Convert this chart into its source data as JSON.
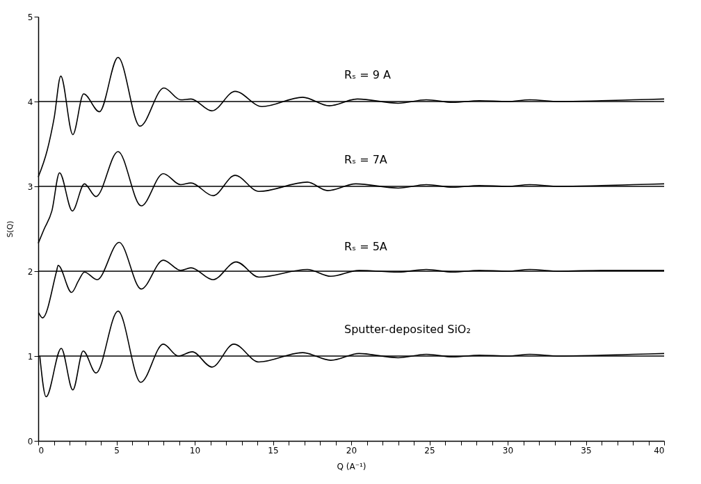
{
  "chart_data": {
    "type": "line",
    "xlabel": "Q    (A⁻¹)",
    "ylabel": "S(Q)",
    "xlim": [
      0,
      40
    ],
    "ylim": [
      0,
      5
    ],
    "xticks": [
      0,
      {
        "value": 1,
        "label": null
      },
      {
        "value": 2,
        "label": null
      },
      {
        "value": 3,
        "label": null
      },
      {
        "value": 4,
        "label": null
      },
      5,
      {
        "value": 6,
        "label": null
      },
      {
        "value": 7,
        "label": null
      },
      {
        "value": 8,
        "label": null
      },
      {
        "value": 9,
        "label": null
      },
      10,
      {
        "value": 11,
        "label": null
      },
      {
        "value": 12,
        "label": null
      },
      {
        "value": 13,
        "label": null
      },
      {
        "value": 14,
        "label": null
      },
      15,
      {
        "value": 16,
        "label": null
      },
      {
        "value": 17,
        "label": null
      },
      {
        "value": 18,
        "label": null
      },
      {
        "value": 19,
        "label": null
      },
      20,
      {
        "value": 21,
        "label": null
      },
      {
        "value": 22,
        "label": null
      },
      {
        "value": 23,
        "label": null
      },
      {
        "value": 24,
        "label": null
      },
      25,
      {
        "value": 26,
        "label": null
      },
      {
        "value": 27,
        "label": null
      },
      {
        "value": 28,
        "label": null
      },
      {
        "value": 29,
        "label": null
      },
      30,
      {
        "value": 31,
        "label": null
      },
      {
        "value": 32,
        "label": null
      },
      {
        "value": 33,
        "label": null
      },
      {
        "value": 34,
        "label": null
      },
      35,
      {
        "value": 36,
        "label": null
      },
      {
        "value": 37,
        "label": null
      },
      {
        "value": 38,
        "label": null
      },
      {
        "value": 39,
        "label": null
      },
      40
    ],
    "yticks": [
      0,
      1,
      2,
      3,
      4,
      5
    ],
    "grid": false,
    "legend": false,
    "marker": "none",
    "line_style": "solid",
    "ref_lines": [
      {
        "axis": "y",
        "value": 1,
        "color": "#000000"
      },
      {
        "axis": "y",
        "value": 2,
        "color": "#000000"
      },
      {
        "axis": "y",
        "value": 3,
        "color": "#000000"
      },
      {
        "axis": "y",
        "value": 4,
        "color": "#000000"
      }
    ],
    "series": [
      {
        "name": "Sputter-deposited SiO₂",
        "color": "#000000",
        "x": [
          0.1,
          0.5,
          1.47,
          2.21,
          2.87,
          3.69,
          5.1,
          6.55,
          7.99,
          8.95,
          9.84,
          11.1,
          12.5,
          14.1,
          16.9,
          18.7,
          20.5,
          23.0,
          24.8,
          26.5,
          28.2,
          30.0,
          31.4,
          33.3,
          36.0,
          38.0,
          40.0
        ],
        "values": [
          1.0,
          0.52,
          1.09,
          0.6,
          1.06,
          0.8,
          1.53,
          0.69,
          1.14,
          1.0,
          1.05,
          0.87,
          1.14,
          0.93,
          1.04,
          0.95,
          1.03,
          0.98,
          1.02,
          0.99,
          1.01,
          1.0,
          1.02,
          1.0,
          1.01,
          1.02,
          1.03
        ]
      },
      {
        "name": "Rₛ = 5A",
        "color": "#000000",
        "x": [
          0.03,
          0.28,
          1.17,
          1.27,
          2.13,
          2.58,
          2.95,
          3.76,
          5.17,
          6.58,
          7.99,
          9.1,
          9.76,
          11.17,
          12.65,
          14.1,
          17.2,
          18.7,
          20.5,
          23.0,
          24.8,
          26.5,
          28.2,
          30.0,
          31.4,
          33.3,
          36.0,
          38.0,
          40.0
        ],
        "values": [
          1.51,
          1.45,
          2.0,
          2.07,
          1.75,
          1.89,
          1.99,
          1.9,
          2.34,
          1.79,
          2.13,
          2.01,
          2.04,
          1.9,
          2.11,
          1.93,
          2.02,
          1.94,
          2.01,
          1.99,
          2.02,
          1.99,
          2.01,
          2.0,
          2.02,
          2.0,
          2.01,
          2.01,
          2.01
        ]
      },
      {
        "name": "Rₛ = 7A",
        "color": "#000000",
        "x": [
          0.0,
          0.36,
          0.87,
          1.36,
          2.18,
          2.95,
          3.69,
          5.1,
          6.58,
          7.99,
          9.1,
          9.76,
          11.17,
          12.58,
          14.1,
          17.2,
          18.5,
          20.3,
          23.0,
          24.8,
          26.5,
          28.2,
          30.0,
          31.4,
          33.3,
          36.0,
          38.0,
          40.0
        ],
        "values": [
          2.33,
          2.49,
          2.71,
          3.16,
          2.71,
          3.03,
          2.88,
          3.41,
          2.77,
          3.15,
          3.02,
          3.04,
          2.89,
          3.13,
          2.94,
          3.05,
          2.95,
          3.03,
          2.98,
          3.02,
          2.99,
          3.01,
          3.0,
          3.02,
          3.0,
          3.01,
          3.02,
          3.03
        ]
      },
      {
        "name": "Rₛ = 9 A",
        "color": "#000000",
        "x": [
          0.0,
          0.58,
          1.02,
          1.44,
          2.21,
          2.9,
          3.91,
          5.1,
          6.5,
          8.03,
          9.1,
          9.76,
          11.1,
          12.58,
          14.3,
          16.9,
          18.6,
          20.4,
          23.0,
          24.8,
          26.5,
          28.2,
          30.0,
          31.4,
          33.3,
          36.0,
          38.0,
          40.0
        ],
        "values": [
          3.11,
          3.43,
          3.81,
          4.3,
          3.61,
          4.09,
          3.88,
          4.52,
          3.71,
          4.16,
          4.02,
          4.03,
          3.89,
          4.12,
          3.94,
          4.05,
          3.95,
          4.03,
          3.98,
          4.02,
          3.99,
          4.01,
          4.0,
          4.02,
          4.0,
          4.01,
          4.02,
          4.03
        ]
      }
    ]
  }
}
